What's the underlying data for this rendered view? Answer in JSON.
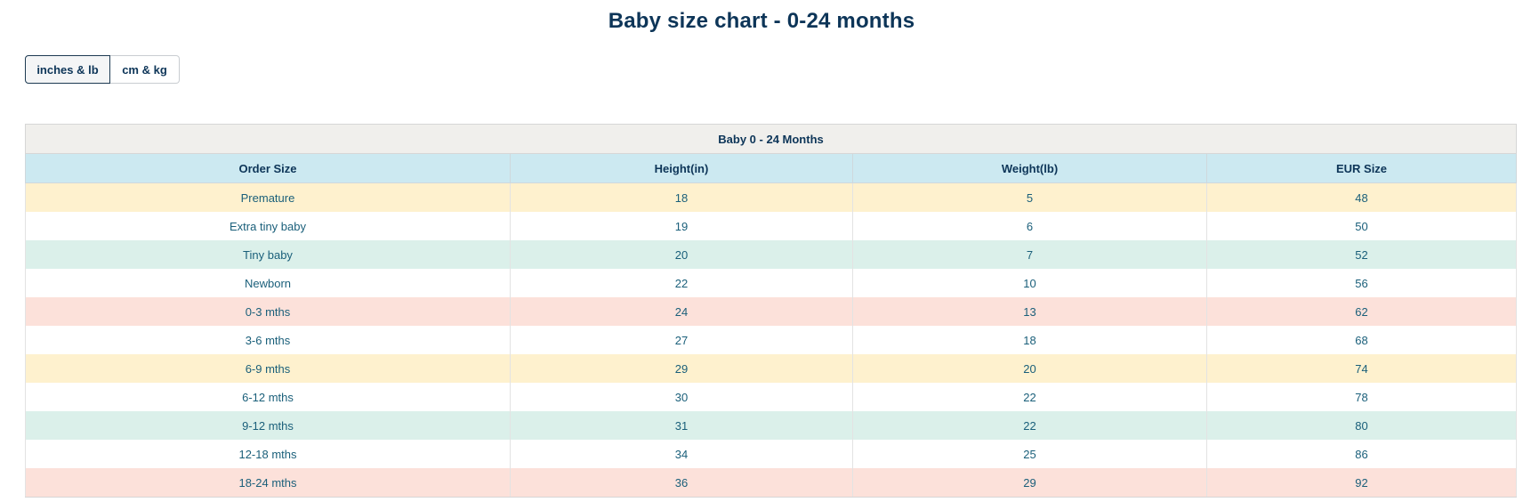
{
  "page": {
    "title": "Baby size chart - 0-24 months"
  },
  "units": {
    "inches_label": "inches & lb",
    "cm_label": "cm & kg",
    "selected": "inches & lb"
  },
  "table": {
    "caption": "Baby 0 - 24 Months",
    "headers": [
      "Order Size",
      "Height(in)",
      "Weight(lb)",
      "EUR Size"
    ],
    "row_colors": [
      "#fef1ce",
      "#ffffff",
      "#dbf0ea",
      "#ffffff",
      "#fce1da",
      "#ffffff",
      "#fef1ce",
      "#ffffff",
      "#dbf0ea",
      "#ffffff",
      "#fce1da"
    ],
    "rows": [
      [
        "Premature",
        "18",
        "5",
        "48"
      ],
      [
        "Extra tiny baby",
        "19",
        "6",
        "50"
      ],
      [
        "Tiny baby",
        "20",
        "7",
        "52"
      ],
      [
        "Newborn",
        "22",
        "10",
        "56"
      ],
      [
        "0-3 mths",
        "24",
        "13",
        "62"
      ],
      [
        "3-6 mths",
        "27",
        "18",
        "68"
      ],
      [
        "6-9 mths",
        "29",
        "20",
        "74"
      ],
      [
        "6-12 mths",
        "30",
        "22",
        "78"
      ],
      [
        "9-12 mths",
        "31",
        "22",
        "80"
      ],
      [
        "12-18 mths",
        "34",
        "25",
        "86"
      ],
      [
        "18-24 mths",
        "36",
        "29",
        "92"
      ]
    ]
  }
}
